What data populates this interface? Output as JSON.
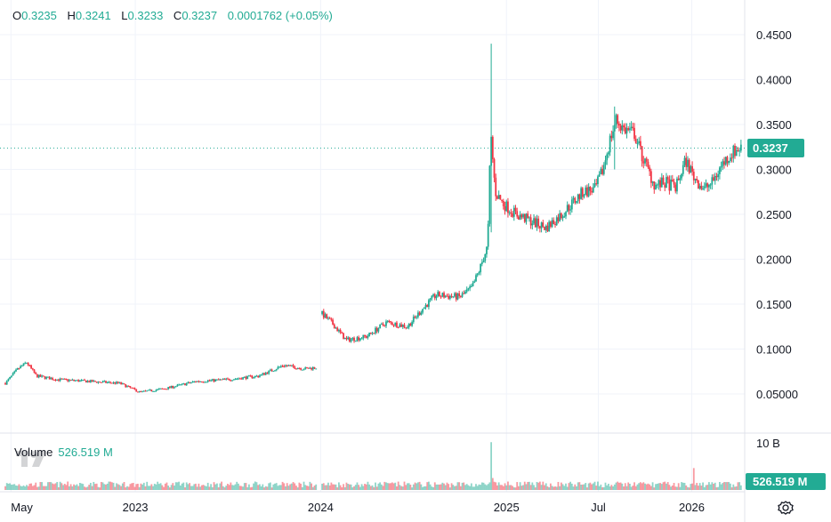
{
  "ohlc": {
    "o_label": "O",
    "o_value": "0.3235",
    "h_label": "H",
    "h_value": "0.3241",
    "l_label": "L",
    "l_value": "0.3233",
    "c_label": "C",
    "c_value": "0.3237",
    "change": "0.0001762 (+0.05%)"
  },
  "volume_legend": {
    "label": "Volume",
    "value": "526.519 M"
  },
  "last_price_tag": "0.3237",
  "volume_tag": "526.519 M",
  "volume_scale_label": "10 B",
  "colors": {
    "up": "#22ab94",
    "down": "#f23645",
    "grid": "#f0f3fa",
    "text": "#131722"
  },
  "icons": {
    "settings": "gear-icon",
    "logo": "tradingview-logo-icon"
  },
  "chart_data": {
    "type": "candlestick",
    "y_ticks": [
      "0.05000",
      "0.1000",
      "0.1500",
      "0.2000",
      "0.2500",
      "0.3000",
      "0.3500",
      "0.4000",
      "0.4500"
    ],
    "y_tick_values": [
      0.05,
      0.1,
      0.15,
      0.2,
      0.25,
      0.3,
      0.35,
      0.4,
      0.45
    ],
    "ylim": [
      0.0,
      0.47
    ],
    "x_ticks": [
      "May",
      "2023",
      "2024",
      "2025",
      "Jul",
      "2026"
    ],
    "x_tick_dates": [
      "2022-05-01",
      "2023-01-01",
      "2024-01-01",
      "2025-01-01",
      "2025-07-01",
      "2026-01-01"
    ],
    "x_range": [
      "2022-04-20",
      "2026-04-10"
    ],
    "last_close": 0.3237,
    "price_path": [
      [
        "2022-04-20",
        0.062
      ],
      [
        "2022-05-15",
        0.078
      ],
      [
        "2022-06-01",
        0.085
      ],
      [
        "2022-06-20",
        0.07
      ],
      [
        "2022-08-01",
        0.066
      ],
      [
        "2022-10-01",
        0.064
      ],
      [
        "2022-12-01",
        0.062
      ],
      [
        "2023-01-10",
        0.052
      ],
      [
        "2023-03-01",
        0.056
      ],
      [
        "2023-05-01",
        0.064
      ],
      [
        "2023-07-01",
        0.066
      ],
      [
        "2023-09-01",
        0.07
      ],
      [
        "2023-10-20",
        0.082
      ],
      [
        "2023-12-01",
        0.078
      ],
      [
        "2023-12-31",
        0.08
      ],
      [
        "2024-01-02",
        0.14
      ],
      [
        "2024-01-25",
        0.128
      ],
      [
        "2024-02-20",
        0.11
      ],
      [
        "2024-04-01",
        0.114
      ],
      [
        "2024-05-10",
        0.13
      ],
      [
        "2024-06-20",
        0.125
      ],
      [
        "2024-07-20",
        0.145
      ],
      [
        "2024-08-15",
        0.16
      ],
      [
        "2024-10-01",
        0.158
      ],
      [
        "2024-10-25",
        0.168
      ],
      [
        "2024-11-10",
        0.19
      ],
      [
        "2024-11-25",
        0.215
      ],
      [
        "2024-12-01",
        0.34
      ],
      [
        "2024-12-10",
        0.275
      ],
      [
        "2024-12-25",
        0.262
      ],
      [
        "2025-01-20",
        0.25
      ],
      [
        "2025-02-20",
        0.242
      ],
      [
        "2025-03-20",
        0.235
      ],
      [
        "2025-04-20",
        0.25
      ],
      [
        "2025-05-10",
        0.262
      ],
      [
        "2025-06-01",
        0.275
      ],
      [
        "2025-06-25",
        0.278
      ],
      [
        "2025-07-10",
        0.3
      ],
      [
        "2025-07-25",
        0.335
      ],
      [
        "2025-08-05",
        0.355
      ],
      [
        "2025-08-20",
        0.345
      ],
      [
        "2025-09-10",
        0.34
      ],
      [
        "2025-09-25",
        0.315
      ],
      [
        "2025-10-20",
        0.282
      ],
      [
        "2025-11-10",
        0.285
      ],
      [
        "2025-12-01",
        0.28
      ],
      [
        "2025-12-20",
        0.31
      ],
      [
        "2026-01-05",
        0.292
      ],
      [
        "2026-01-25",
        0.278
      ],
      [
        "2026-02-10",
        0.285
      ],
      [
        "2026-03-01",
        0.305
      ],
      [
        "2026-03-20",
        0.318
      ],
      [
        "2026-04-05",
        0.3237
      ]
    ],
    "spikes": [
      {
        "date": "2024-12-01",
        "high": 0.44,
        "low": 0.23
      },
      {
        "date": "2025-08-01",
        "high": 0.37,
        "low": 0.3
      }
    ],
    "volume_max_label": "10 B",
    "volume_spikes": [
      {
        "date": "2024-12-01",
        "value": 9.6
      },
      {
        "date": "2024-12-05",
        "value": 2.4
      },
      {
        "date": "2026-01-05",
        "value": 4.4
      }
    ]
  }
}
